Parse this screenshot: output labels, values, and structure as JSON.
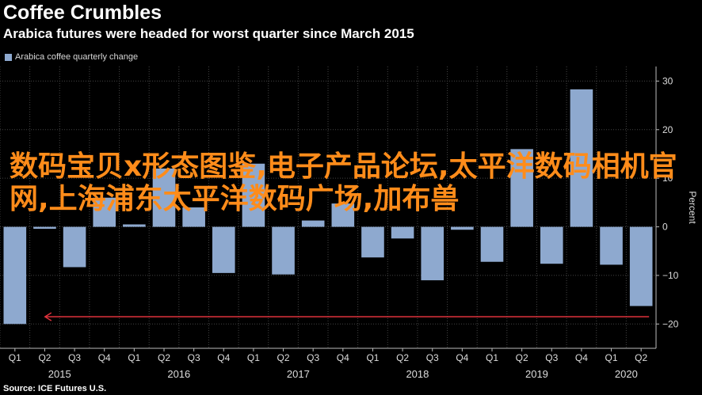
{
  "header": {
    "title": "Coffee Crumbles",
    "subtitle": "Arabica futures were headed for worst quarter since March 2015"
  },
  "legend": {
    "label": "Arabica coffee quarterly change"
  },
  "source": "Source: ICE Futures U.S.",
  "watermark": {
    "text": "数码宝贝x形态图鉴,电子产品论坛,太平洋数码相机官网,上海浦东太平洋数码广场,加布兽"
  },
  "colors": {
    "bar": "#8ea9cf",
    "arrow": "#e0323c",
    "background": "#000000",
    "grid": "#444444"
  },
  "chart_data": {
    "type": "bar",
    "categories": [
      "Q1 2015",
      "Q2 2015",
      "Q3 2015",
      "Q4 2015",
      "Q1 2016",
      "Q2 2016",
      "Q3 2016",
      "Q4 2016",
      "Q1 2017",
      "Q2 2017",
      "Q3 2017",
      "Q4 2017",
      "Q1 2018",
      "Q2 2018",
      "Q3 2018",
      "Q4 2018",
      "Q1 2019",
      "Q2 2019",
      "Q3 2019",
      "Q4 2019",
      "Q1 2020",
      "Q2 2020"
    ],
    "values": [
      -20,
      -0.4,
      -8.3,
      6,
      0.5,
      12,
      4,
      -9.5,
      13,
      -9.8,
      1.3,
      4.8,
      -6.3,
      -2.4,
      -11,
      -0.6,
      -7.2,
      16,
      -7.6,
      28.3,
      -7.8,
      -16.3
    ],
    "quarter_labels": [
      "Q1",
      "Q2",
      "Q3",
      "Q4",
      "Q1",
      "Q2",
      "Q3",
      "Q4",
      "Q1",
      "Q2",
      "Q3",
      "Q4",
      "Q1",
      "Q2",
      "Q3",
      "Q4",
      "Q1",
      "Q2",
      "Q3",
      "Q4",
      "Q1",
      "Q2"
    ],
    "years": [
      "2015",
      "2016",
      "2017",
      "2018",
      "2019",
      "2020"
    ],
    "ylabel": "Percent",
    "yticks": [
      30,
      20,
      10,
      0,
      -10,
      -20
    ],
    "ylim": [
      -25,
      33
    ],
    "grid": true,
    "axis_side": "right",
    "annotation": {
      "type": "arrow",
      "y_value": -18.5,
      "from_category": "Q2 2020",
      "to_category": "Q1 2015"
    }
  }
}
